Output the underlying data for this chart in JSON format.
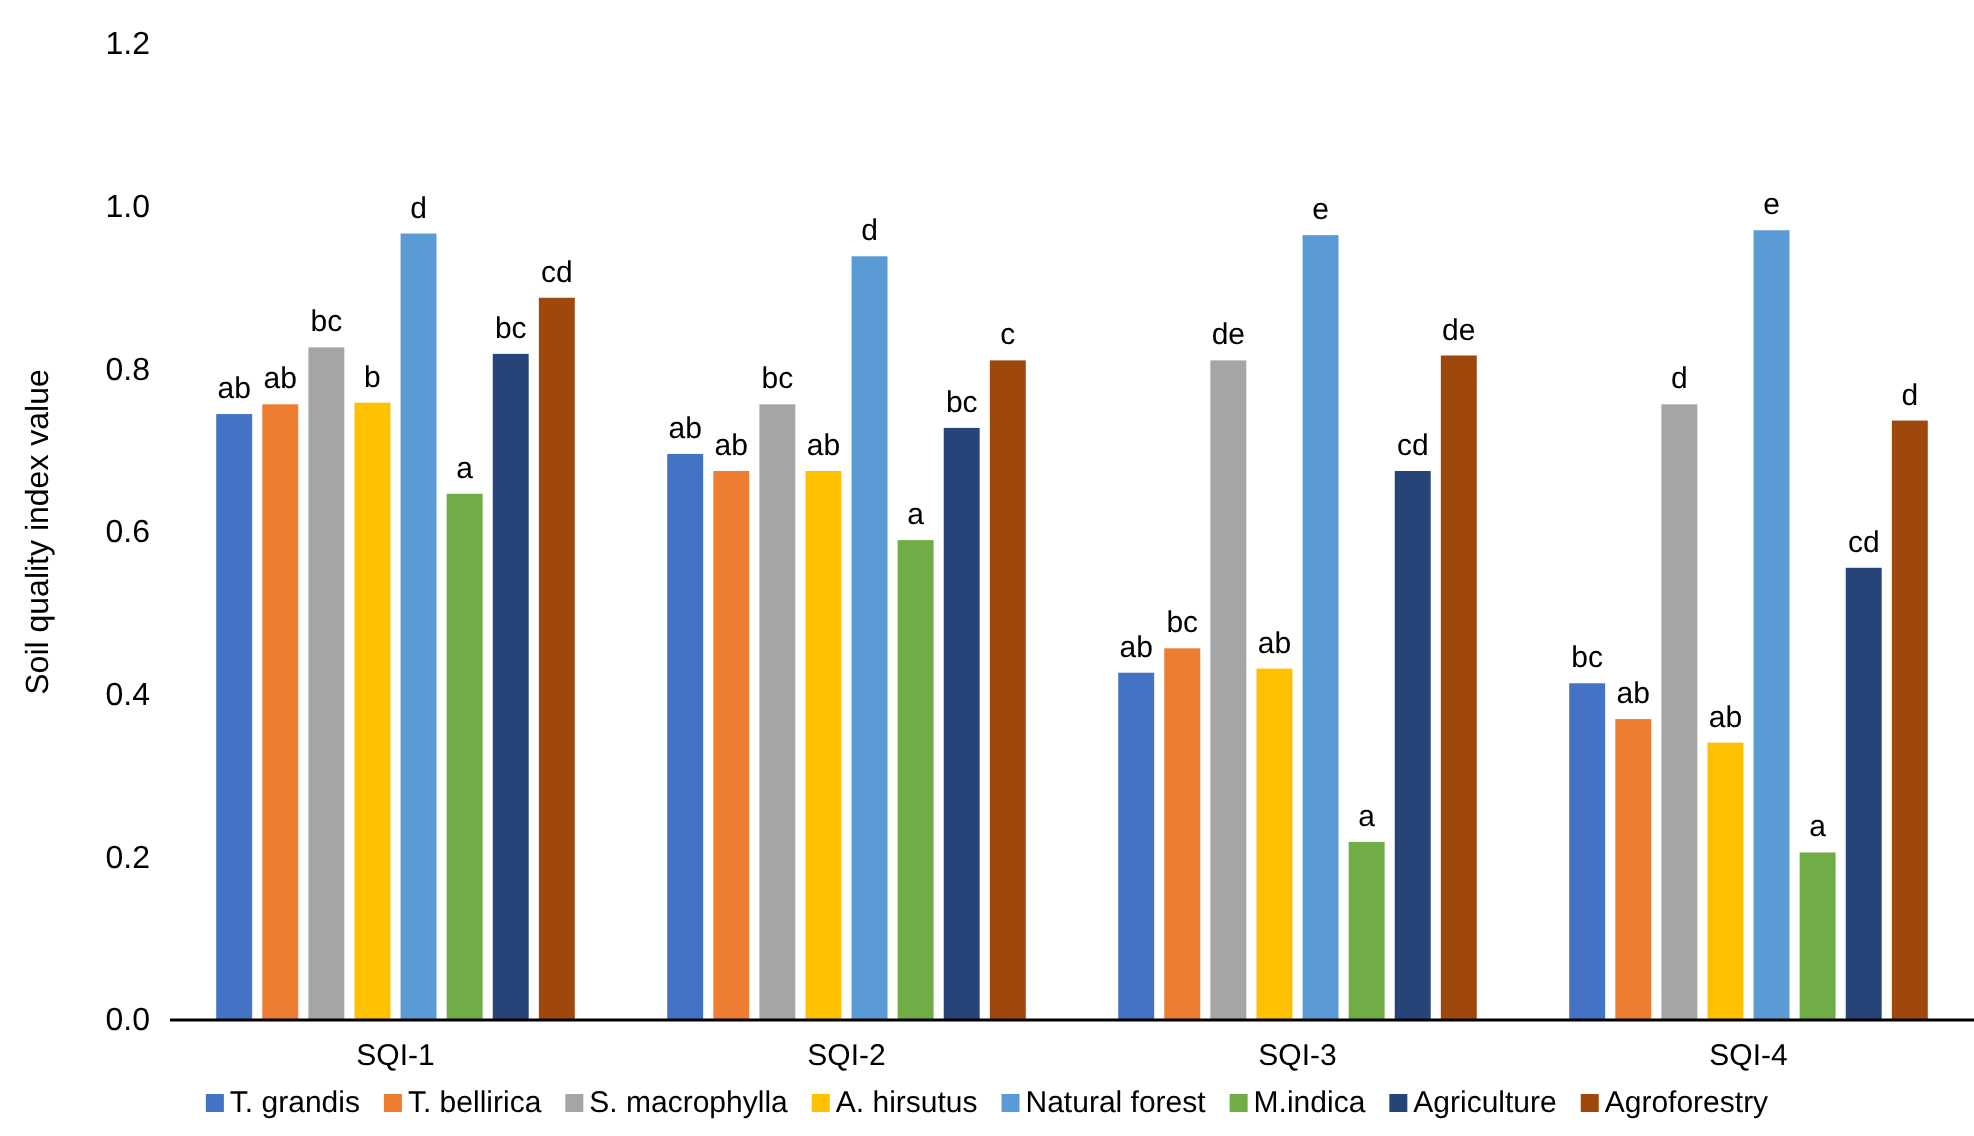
{
  "chart_data": {
    "type": "bar",
    "ylabel": "Soil quality index value",
    "categories": [
      "SQI-1",
      "SQI-2",
      "SQI-3",
      "SQI-4"
    ],
    "ylim": [
      0,
      1.2
    ],
    "yticks": [
      {
        "value": 0,
        "label": "0.0"
      },
      {
        "value": 0.2,
        "label": "0.2"
      },
      {
        "value": 0.4,
        "label": "0.4"
      },
      {
        "value": 0.6,
        "label": "0.6"
      },
      {
        "value": 0.8,
        "label": "0.8"
      },
      {
        "value": 1,
        "label": "1.0"
      },
      {
        "value": 1.2,
        "label": "1.2"
      }
    ],
    "grid": false,
    "legend": "bottom",
    "series": [
      {
        "name": "T. grandis",
        "color": "#4472c4",
        "values": [
          0.745,
          0.696,
          0.427,
          0.414
        ],
        "value_labels": [
          "ab",
          "ab",
          "ab",
          "bc"
        ]
      },
      {
        "name": "T. bellirica",
        "color": "#ed7d31",
        "values": [
          0.757,
          0.675,
          0.457,
          0.37
        ],
        "value_labels": [
          "ab",
          "ab",
          "bc",
          "ab"
        ]
      },
      {
        "name": "S. macrophylla",
        "color": "#a5a5a5",
        "values": [
          0.827,
          0.757,
          0.811,
          0.757
        ],
        "value_labels": [
          "bc",
          "bc",
          "de",
          "d"
        ]
      },
      {
        "name": "A. hirsutus",
        "color": "#ffc000",
        "values": [
          0.759,
          0.675,
          0.432,
          0.341
        ],
        "value_labels": [
          "b",
          "ab",
          "ab",
          "ab"
        ]
      },
      {
        "name": "Natural forest",
        "color": "#5b9bd5",
        "values": [
          0.967,
          0.939,
          0.965,
          0.971
        ],
        "value_labels": [
          "d",
          "d",
          "e",
          "e"
        ]
      },
      {
        "name": "M.indica",
        "color": "#70ad47",
        "values": [
          0.647,
          0.59,
          0.219,
          0.206
        ],
        "value_labels": [
          "a",
          "a",
          "a",
          "a"
        ]
      },
      {
        "name": "Agriculture",
        "color": "#264478",
        "values": [
          0.819,
          0.728,
          0.675,
          0.556
        ],
        "value_labels": [
          "bc",
          "bc",
          "cd",
          "cd"
        ]
      },
      {
        "name": "Agroforestry",
        "color": "#9e480e",
        "values": [
          0.888,
          0.811,
          0.817,
          0.737
        ],
        "value_labels": [
          "cd",
          "c",
          "de",
          "d"
        ]
      }
    ]
  }
}
